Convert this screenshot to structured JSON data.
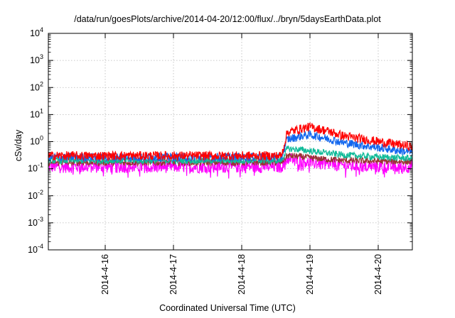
{
  "chart_data": {
    "type": "line",
    "title": "/data/run/goesPlots/archive/2014-04-20/12:00/flux/../bryn/5daysEarthData.plot",
    "xlabel": "Coordinated Universal Time (UTC)",
    "ylabel": "cSv/day",
    "yscale": "log",
    "ylim": [
      0.0001,
      10000
    ],
    "xlim": [
      "2014-04-15 04:00",
      "2014-04-20 12:00"
    ],
    "grid": true,
    "y_ticks": [
      {
        "value": 0.0001,
        "base": "10",
        "exp": "-4"
      },
      {
        "value": 0.001,
        "base": "10",
        "exp": "-3"
      },
      {
        "value": 0.01,
        "base": "10",
        "exp": "-2"
      },
      {
        "value": 0.1,
        "base": "10",
        "exp": "-1"
      },
      {
        "value": 1,
        "base": "10",
        "exp": "0"
      },
      {
        "value": 10,
        "base": "10",
        "exp": "1"
      },
      {
        "value": 100,
        "base": "10",
        "exp": "2"
      },
      {
        "value": 1000,
        "base": "10",
        "exp": "3"
      },
      {
        "value": 10000,
        "base": "10",
        "exp": "4"
      }
    ],
    "x_ticks": [
      {
        "value": "2014-04-16 00:00",
        "label": "2014-4-16"
      },
      {
        "value": "2014-04-17 00:00",
        "label": "2014-4-17"
      },
      {
        "value": "2014-04-18 00:00",
        "label": "2014-4-18"
      },
      {
        "value": "2014-04-19 00:00",
        "label": "2014-4-19"
      },
      {
        "value": "2014-04-20 00:00",
        "label": "2014-4-20"
      }
    ],
    "series": [
      {
        "color": "#ff0000",
        "x": [
          "2014-04-15 04:00",
          "2014-04-16 00:00",
          "2014-04-17 00:00",
          "2014-04-18 00:00",
          "2014-04-18 14:00",
          "2014-04-18 16:00",
          "2014-04-18 21:00",
          "2014-04-19 00:00",
          "2014-04-19 06:00",
          "2014-04-19 12:00",
          "2014-04-20 00:00",
          "2014-04-20 12:00"
        ],
        "y": [
          0.3,
          0.3,
          0.3,
          0.3,
          0.3,
          2.2,
          3.0,
          3.5,
          2.5,
          1.6,
          1.0,
          0.65
        ]
      },
      {
        "color": "#1166ee",
        "x": [
          "2014-04-15 04:00",
          "2014-04-16 00:00",
          "2014-04-17 00:00",
          "2014-04-18 00:00",
          "2014-04-18 14:00",
          "2014-04-18 16:00",
          "2014-04-18 21:00",
          "2014-04-19 00:00",
          "2014-04-19 06:00",
          "2014-04-19 12:00",
          "2014-04-20 00:00",
          "2014-04-20 12:00"
        ],
        "y": [
          0.27,
          0.27,
          0.27,
          0.27,
          0.27,
          1.2,
          1.6,
          1.8,
          1.3,
          0.9,
          0.6,
          0.4
        ]
      },
      {
        "color": "#11bb99",
        "x": [
          "2014-04-15 04:00",
          "2014-04-16 00:00",
          "2014-04-17 00:00",
          "2014-04-18 00:00",
          "2014-04-18 14:00",
          "2014-04-18 16:00",
          "2014-04-18 21:00",
          "2014-04-19 00:00",
          "2014-04-19 06:00",
          "2014-04-19 12:00",
          "2014-04-20 00:00",
          "2014-04-20 12:00"
        ],
        "y": [
          0.2,
          0.2,
          0.2,
          0.2,
          0.2,
          0.55,
          0.5,
          0.45,
          0.38,
          0.32,
          0.27,
          0.24
        ]
      },
      {
        "color": "#993333",
        "x": [
          "2014-04-15 04:00",
          "2014-04-16 00:00",
          "2014-04-17 00:00",
          "2014-04-18 00:00",
          "2014-04-18 14:00",
          "2014-04-18 16:00",
          "2014-04-18 21:00",
          "2014-04-19 00:00",
          "2014-04-19 06:00",
          "2014-04-19 12:00",
          "2014-04-20 00:00",
          "2014-04-20 12:00"
        ],
        "y": [
          0.17,
          0.17,
          0.17,
          0.17,
          0.17,
          0.3,
          0.28,
          0.25,
          0.22,
          0.2,
          0.19,
          0.18
        ]
      },
      {
        "color": "#ff00ff",
        "x": [
          "2014-04-15 04:00",
          "2014-04-16 00:00",
          "2014-04-17 00:00",
          "2014-04-18 00:00",
          "2014-04-18 14:00",
          "2014-04-18 16:00",
          "2014-04-18 21:00",
          "2014-04-19 00:00",
          "2014-04-19 06:00",
          "2014-04-19 12:00",
          "2014-04-20 00:00",
          "2014-04-20 12:00"
        ],
        "y": [
          0.12,
          0.12,
          0.12,
          0.12,
          0.12,
          0.24,
          0.2,
          0.17,
          0.15,
          0.13,
          0.12,
          0.12
        ]
      }
    ]
  }
}
